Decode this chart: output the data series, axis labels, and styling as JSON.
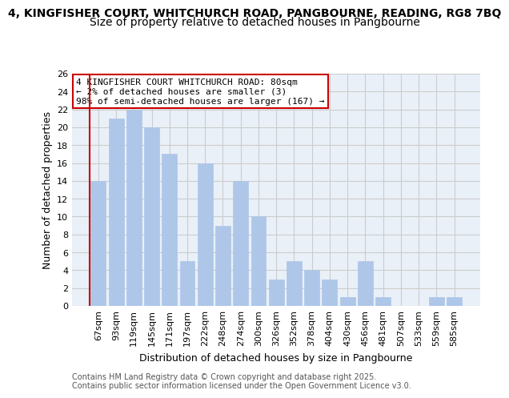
{
  "title_line1": "4, KINGFISHER COURT, WHITCHURCH ROAD, PANGBOURNE, READING, RG8 7BQ",
  "title_line2": "Size of property relative to detached houses in Pangbourne",
  "xlabel": "Distribution of detached houses by size in Pangbourne",
  "ylabel": "Number of detached properties",
  "categories": [
    "67sqm",
    "93sqm",
    "119sqm",
    "145sqm",
    "171sqm",
    "197sqm",
    "222sqm",
    "248sqm",
    "274sqm",
    "300sqm",
    "326sqm",
    "352sqm",
    "378sqm",
    "404sqm",
    "430sqm",
    "456sqm",
    "481sqm",
    "507sqm",
    "533sqm",
    "559sqm",
    "585sqm"
  ],
  "values": [
    14,
    21,
    22,
    20,
    17,
    5,
    16,
    9,
    14,
    10,
    3,
    5,
    4,
    3,
    1,
    5,
    1,
    0,
    0,
    1,
    1
  ],
  "bar_color": "#aec6e8",
  "bar_edgecolor": "#aec6e8",
  "vline_color": "#cc0000",
  "annotation_text": "4 KINGFISHER COURT WHITCHURCH ROAD: 80sqm\n← 2% of detached houses are smaller (3)\n98% of semi-detached houses are larger (167) →",
  "annotation_box_edgecolor": "#cc0000",
  "annotation_box_facecolor": "#ffffff",
  "ylim": [
    0,
    26
  ],
  "yticks": [
    0,
    2,
    4,
    6,
    8,
    10,
    12,
    14,
    16,
    18,
    20,
    22,
    24,
    26
  ],
  "grid_color": "#cccccc",
  "background_color": "#eaf0f8",
  "footer": "Contains HM Land Registry data © Crown copyright and database right 2025.\nContains public sector information licensed under the Open Government Licence v3.0.",
  "title_fontsize": 10,
  "subtitle_fontsize": 10,
  "axis_label_fontsize": 9,
  "tick_fontsize": 8,
  "annotation_fontsize": 8,
  "footer_fontsize": 7
}
